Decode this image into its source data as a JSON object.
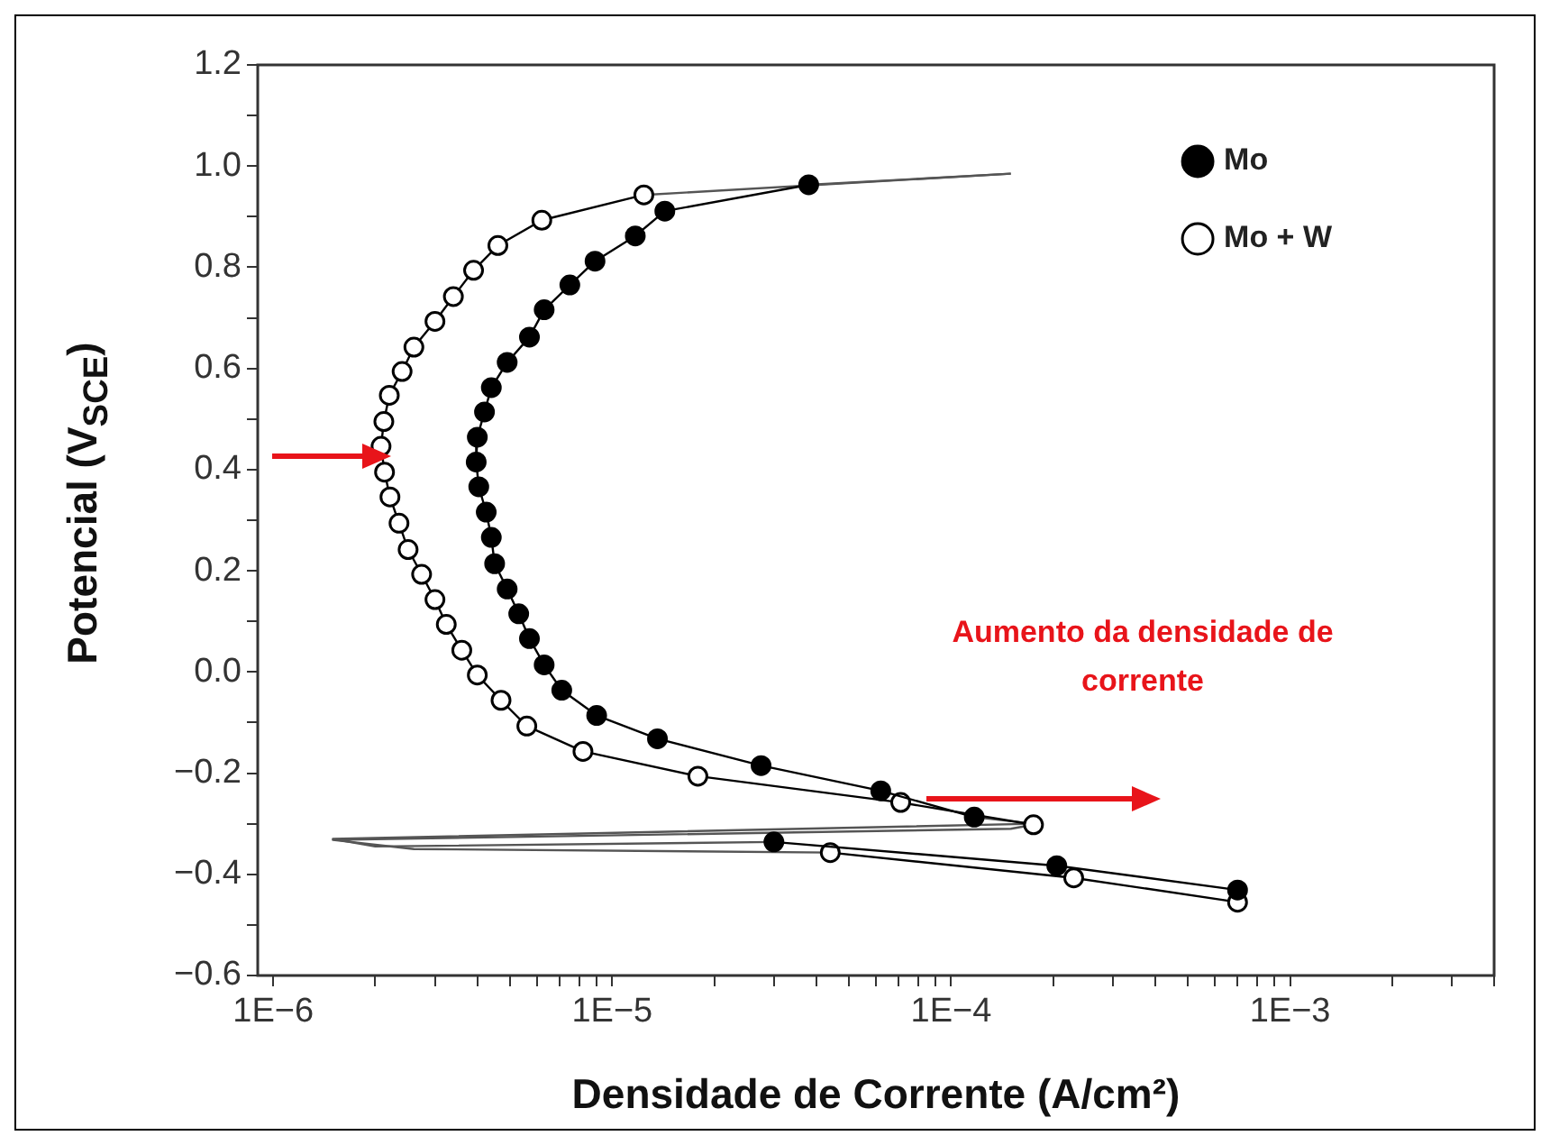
{
  "chart_data": {
    "type": "line",
    "xlabel": "Densidade de Corrente (A/cm²)",
    "ylabel": "Potencial (V$_{SCE}$)",
    "log": "x",
    "xlim": [
      9e-07,
      0.004
    ],
    "ylim": [
      -0.6,
      1.2
    ],
    "xticks": [
      {
        "value": 1e-06,
        "label": "1E−6"
      },
      {
        "value": 2e-06,
        "label": null
      },
      {
        "value": 3e-06,
        "label": null
      },
      {
        "value": 4e-06,
        "label": null
      },
      {
        "value": 5e-06,
        "label": null
      },
      {
        "value": 6e-06,
        "label": null
      },
      {
        "value": 7e-06,
        "label": null
      },
      {
        "value": 8e-06,
        "label": null
      },
      {
        "value": 9e-06,
        "label": null
      },
      {
        "value": 1e-05,
        "label": "1E−5"
      },
      {
        "value": 2e-05,
        "label": null
      },
      {
        "value": 3e-05,
        "label": null
      },
      {
        "value": 4e-05,
        "label": null
      },
      {
        "value": 5e-05,
        "label": null
      },
      {
        "value": 6e-05,
        "label": null
      },
      {
        "value": 7e-05,
        "label": null
      },
      {
        "value": 8e-05,
        "label": null
      },
      {
        "value": 9e-05,
        "label": null
      },
      {
        "value": 0.0001,
        "label": "1E−4"
      },
      {
        "value": 0.0002,
        "label": null
      },
      {
        "value": 0.0003,
        "label": null
      },
      {
        "value": 0.0004,
        "label": null
      },
      {
        "value": 0.0005,
        "label": null
      },
      {
        "value": 0.0006,
        "label": null
      },
      {
        "value": 0.0007,
        "label": null
      },
      {
        "value": 0.0008,
        "label": null
      },
      {
        "value": 0.0009,
        "label": null
      },
      {
        "value": 0.001,
        "label": "1E−3"
      },
      {
        "value": 0.002,
        "label": null
      },
      {
        "value": 0.003,
        "label": null
      },
      {
        "value": 0.004,
        "label": null
      }
    ],
    "yticks": [
      {
        "value": -0.6,
        "label": "−0.6"
      },
      {
        "value": -0.5,
        "label": null
      },
      {
        "value": -0.4,
        "label": "−0.4"
      },
      {
        "value": -0.3,
        "label": null
      },
      {
        "value": -0.2,
        "label": "−0.2"
      },
      {
        "value": -0.1,
        "label": null
      },
      {
        "value": 0,
        "label": "0.0"
      },
      {
        "value": 0.1,
        "label": null
      },
      {
        "value": 0.2,
        "label": "0.2"
      },
      {
        "value": 0.3,
        "label": null
      },
      {
        "value": 0.4,
        "label": "0.4"
      },
      {
        "value": 0.5,
        "label": null
      },
      {
        "value": 0.6,
        "label": "0.6"
      },
      {
        "value": 0.7,
        "label": null
      },
      {
        "value": 0.8,
        "label": "0.8"
      },
      {
        "value": 0.9,
        "label": null
      },
      {
        "value": 1.0,
        "label": "1.0"
      },
      {
        "value": 1.1,
        "label": null
      },
      {
        "value": 1.2,
        "label": "1.2"
      }
    ],
    "grid": false,
    "legend": "top right",
    "marker": "circle",
    "annotations": [
      "Aumento da densidade de corrente"
    ],
    "series": [
      {
        "name": "Mo",
        "color": "#000000",
        "x": [
          3.8e-05,
          1.43e-05,
          1.17e-05,
          8.9e-06,
          7.5e-06,
          6.3e-06,
          5.7e-06,
          4.9e-06,
          4.4e-06,
          4.2e-06,
          4e-06,
          3.97e-06,
          4.04e-06,
          4.25e-06,
          4.4e-06,
          4.5e-06,
          4.9e-06,
          5.3e-06,
          5.7e-06,
          6.3e-06,
          7.1e-06,
          9e-06,
          1.36e-05,
          2.75e-05,
          6.2e-05,
          0.000117,
          null,
          3e-05,
          0.000205,
          0.0007
        ],
        "values": [
          0.963,
          0.911,
          0.862,
          0.812,
          0.765,
          0.716,
          0.662,
          0.612,
          0.562,
          0.514,
          0.464,
          0.415,
          0.366,
          0.316,
          0.266,
          0.214,
          0.164,
          0.115,
          0.066,
          0.014,
          -0.036,
          -0.086,
          -0.132,
          -0.185,
          -0.235,
          -0.287,
          null,
          -0.336,
          -0.383,
          -0.431
        ]
      },
      {
        "name": "Mo + W",
        "color": "#000000",
        "colors": [
          "#ffffff",
          "#ffffff",
          "#ffffff",
          "#ffffff",
          "#ffffff",
          "#ffffff",
          "#ffffff",
          "#ffffff",
          "#ffffff",
          "#ffffff",
          "#ffffff",
          "#ffffff",
          "#ffffff",
          "#ffffff",
          "#ffffff",
          "#ffffff",
          "#ffffff",
          "#ffffff",
          "#ffffff",
          "#ffffff",
          "#ffffff",
          "#ffffff",
          "#ffffff",
          "#ffffff",
          "#ffffff",
          "#ffffff",
          null,
          "#ffffff",
          "#ffffff",
          "#ffffff"
        ],
        "x": [
          1.24e-05,
          6.2e-06,
          4.6e-06,
          3.9e-06,
          3.4e-06,
          3e-06,
          2.6e-06,
          2.4e-06,
          2.2e-06,
          2.12e-06,
          2.08e-06,
          2.13e-06,
          2.21e-06,
          2.35e-06,
          2.5e-06,
          2.74e-06,
          3e-06,
          3.24e-06,
          3.6e-06,
          4e-06,
          4.7e-06,
          5.6e-06,
          8.2e-06,
          1.79e-05,
          7.1e-05,
          0.000175,
          null,
          4.4e-05,
          0.00023,
          0.0007
        ],
        "values": [
          0.943,
          0.893,
          0.843,
          0.794,
          0.742,
          0.693,
          0.642,
          0.594,
          0.547,
          0.495,
          0.446,
          0.395,
          0.346,
          0.294,
          0.242,
          0.193,
          0.143,
          0.094,
          0.043,
          -0.006,
          -0.056,
          -0.107,
          -0.157,
          -0.206,
          -0.258,
          -0.302,
          null,
          -0.357,
          -0.407,
          -0.455
        ]
      },
      {
        "color": "#555555",
        "marker": "none",
        "x": [
          3.8e-05,
          0.00015
        ],
        "values": [
          0.963,
          0.985
        ]
      },
      {
        "color": "#555555",
        "marker": "none",
        "x": [
          1.24e-05,
          0.00015
        ],
        "values": [
          0.943,
          0.985
        ]
      },
      {
        "color": "#555555",
        "marker": "none",
        "x": [
          0.000117,
          0.000176,
          1.5e-06,
          2e-06,
          3e-05
        ],
        "values": [
          -0.287,
          -0.3,
          -0.33,
          -0.345,
          -0.336
        ]
      },
      {
        "color": "#555555",
        "marker": "none",
        "x": [
          0.000175,
          0.00015,
          1.5e-06,
          2.6e-06,
          4.4e-05
        ],
        "values": [
          -0.302,
          -0.31,
          -0.332,
          -0.35,
          -0.357
        ]
      }
    ]
  }
}
